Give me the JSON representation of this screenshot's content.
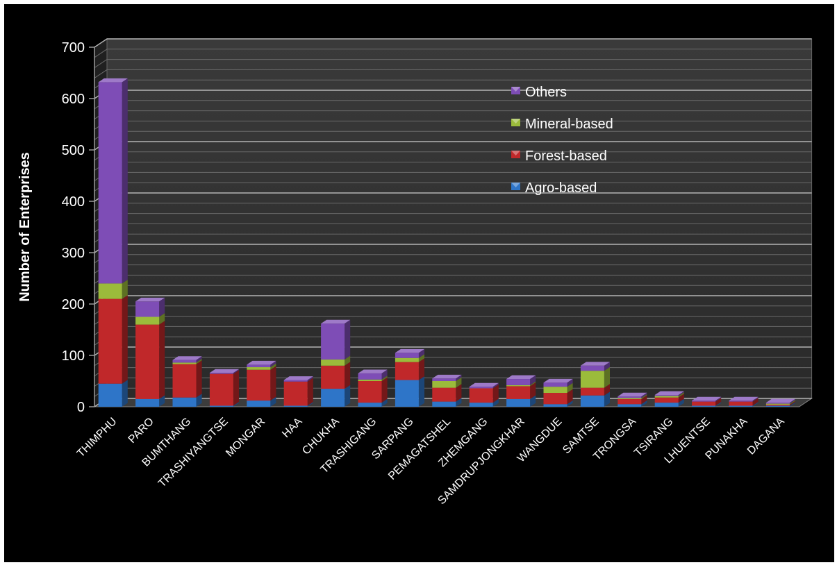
{
  "chart_data": {
    "type": "bar",
    "stacked": true,
    "three_d": true,
    "title": "",
    "xlabel": "",
    "ylabel": "Number of Enterprises",
    "ylim": [
      0,
      700
    ],
    "yticks": [
      0,
      100,
      200,
      300,
      400,
      500,
      600,
      700
    ],
    "grid": true,
    "legend_position": "top-right",
    "categories": [
      "THIMPHU",
      "PARO",
      "BUMTHANG",
      "TRASHIYANGTSE",
      "MONGAR",
      "HAA",
      "CHUKHA",
      "TRASHIGANG",
      "SARPANG",
      "PEMAGATSHEL",
      "ZHEMGANG",
      "SAMDRUPJONGKHAR",
      "WANGDUE",
      "SAMTSE",
      "TRONGSA",
      "TSIRANG",
      "LHUENTSE",
      "PUNAKHA",
      "DAGANA"
    ],
    "series": [
      {
        "name": "Agro-based",
        "color": "#2e75c8",
        "values": [
          45,
          15,
          18,
          2,
          12,
          2,
          35,
          8,
          52,
          10,
          8,
          15,
          5,
          22,
          5,
          8,
          2,
          2,
          2
        ]
      },
      {
        "name": "Forest-based",
        "color": "#c0282a",
        "values": [
          165,
          145,
          65,
          62,
          60,
          47,
          45,
          42,
          35,
          27,
          28,
          25,
          22,
          15,
          10,
          10,
          8,
          8,
          2
        ]
      },
      {
        "name": "Mineral-based",
        "color": "#9bbb3b",
        "values": [
          30,
          15,
          3,
          0,
          5,
          0,
          12,
          3,
          8,
          13,
          0,
          2,
          12,
          33,
          2,
          3,
          0,
          0,
          2
        ]
      },
      {
        "name": "Others",
        "color": "#7e4db6",
        "values": [
          392,
          30,
          5,
          2,
          5,
          3,
          70,
          12,
          10,
          5,
          3,
          12,
          8,
          10,
          3,
          2,
          2,
          2,
          2
        ]
      }
    ],
    "colors": {
      "background": "#000000",
      "plot_floor": "#2f2f2f",
      "gridline": "#a8a8a8",
      "text": "#ffffff"
    }
  }
}
